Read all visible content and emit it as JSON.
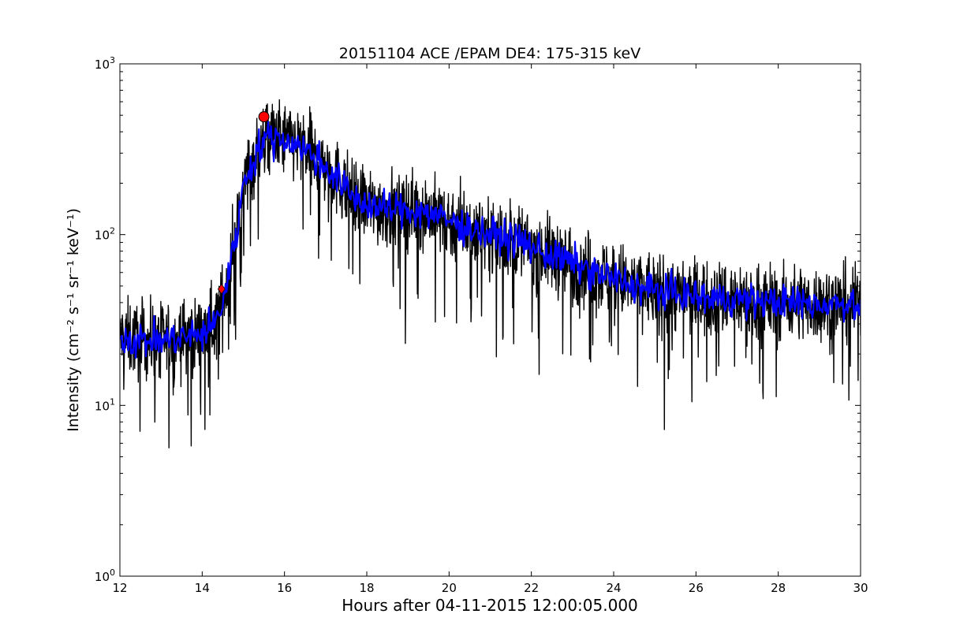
{
  "chart_data": {
    "type": "line",
    "title": "20151104 ACE /EPAM DE4: 175-315 keV",
    "xlabel": "Hours after 04-11-2015 12:00:05.000",
    "ylabel": "Intensity (cm⁻² s⁻¹ sr⁻¹ keV⁻¹)",
    "xlim": [
      12,
      30
    ],
    "ylim": [
      1,
      1000
    ],
    "yscale": "log",
    "grid": false,
    "x_ticks": [
      12,
      14,
      16,
      18,
      20,
      22,
      24,
      26,
      28,
      30
    ],
    "x_tick_labels": [
      "12",
      "14",
      "16",
      "18",
      "20",
      "22",
      "24",
      "26",
      "28",
      "30"
    ],
    "y_ticks": [
      1,
      10,
      100,
      1000
    ],
    "y_tick_labels": [
      {
        "base": "10",
        "exp": "0"
      },
      {
        "base": "10",
        "exp": "1"
      },
      {
        "base": "10",
        "exp": "2"
      },
      {
        "base": "10",
        "exp": "3"
      }
    ],
    "series": [
      {
        "color": "#000000",
        "style": "raw",
        "envelope_x": [
          12.0,
          12.5,
          13.0,
          13.5,
          14.0,
          14.3,
          14.5,
          14.7,
          14.9,
          15.0,
          15.2,
          15.4,
          15.6,
          15.8,
          16.0,
          16.3,
          16.6,
          17.0,
          17.3,
          17.6,
          18.0,
          18.5,
          19.0,
          19.5,
          20.0,
          20.5,
          21.0,
          21.5,
          22.0,
          22.5,
          23.0,
          23.5,
          24.0,
          24.5,
          25.0,
          25.5,
          26.0,
          26.5,
          27.0,
          27.5,
          28.0,
          28.5,
          29.0,
          29.5,
          30.0
        ],
        "envelope_y": [
          25,
          24,
          24,
          25,
          26,
          30,
          40,
          70,
          130,
          200,
          260,
          330,
          370,
          370,
          360,
          340,
          300,
          250,
          210,
          170,
          150,
          140,
          140,
          135,
          120,
          110,
          100,
          95,
          85,
          75,
          68,
          60,
          55,
          50,
          47,
          45,
          43,
          42,
          42,
          41,
          40,
          40,
          39,
          40,
          40
        ]
      },
      {
        "color": "#0000ff",
        "style": "smoothed",
        "x": [
          12.0,
          12.5,
          13.0,
          13.5,
          14.0,
          14.3,
          14.5,
          14.7,
          14.9,
          15.0,
          15.2,
          15.4,
          15.6,
          15.8,
          16.0,
          16.3,
          16.6,
          17.0,
          17.3,
          17.6,
          18.0,
          18.5,
          19.0,
          19.5,
          20.0,
          20.5,
          21.0,
          21.5,
          22.0,
          22.5,
          23.0,
          23.5,
          24.0,
          24.5,
          25.0,
          25.5,
          26.0,
          26.5,
          27.0,
          27.5,
          28.0,
          28.5,
          29.0,
          29.5,
          30.0
        ],
        "y": [
          25,
          24,
          24,
          25,
          26,
          30,
          40,
          70,
          130,
          200,
          260,
          330,
          370,
          370,
          360,
          340,
          300,
          250,
          210,
          170,
          150,
          140,
          140,
          135,
          120,
          110,
          100,
          95,
          85,
          75,
          68,
          60,
          55,
          50,
          47,
          45,
          43,
          42,
          42,
          41,
          40,
          40,
          39,
          40,
          40
        ]
      }
    ],
    "markers": [
      {
        "shape": "circle",
        "color": "#ff0000",
        "x": 15.5,
        "y": 490
      },
      {
        "shape": "diamond",
        "color": "#ff0000",
        "x": 14.47,
        "y": 48
      }
    ]
  }
}
